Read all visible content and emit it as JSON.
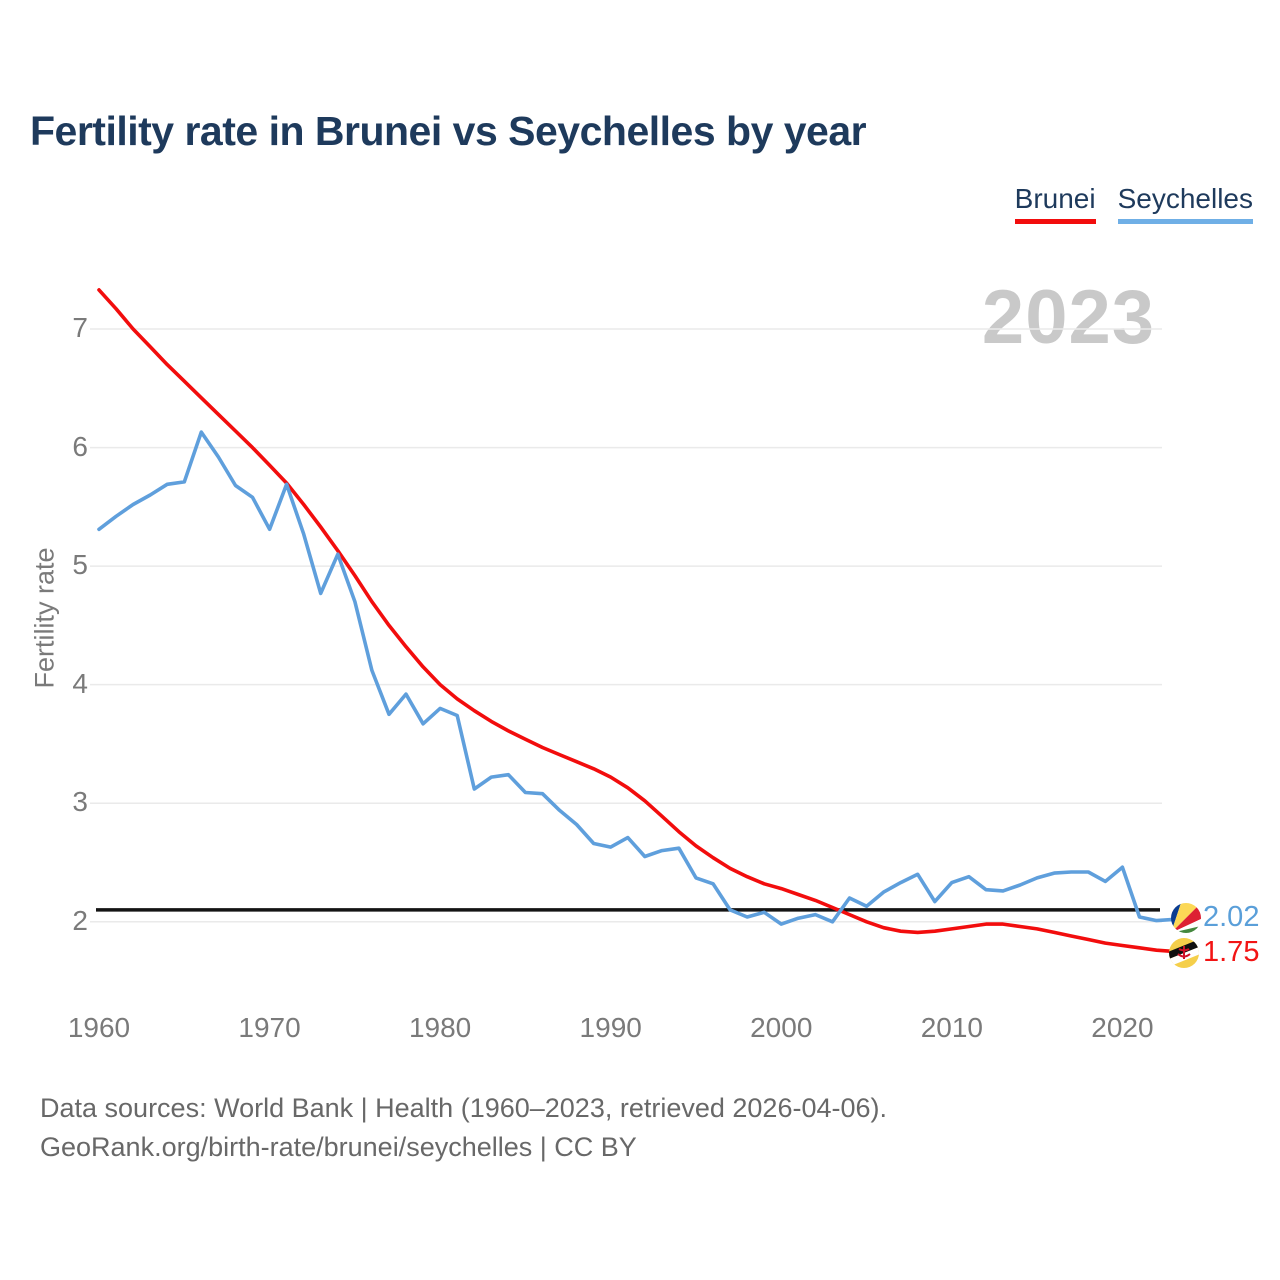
{
  "title": "Fertility rate in Brunei vs Seychelles by year",
  "watermark_year": "2023",
  "legend": [
    {
      "label": "Brunei",
      "color": "#f20d0d"
    },
    {
      "label": "Seychelles",
      "color": "#6fafe6"
    }
  ],
  "y_axis_title": "Fertility rate",
  "end_labels": [
    {
      "series": "Seychelles",
      "value": "2.02",
      "color": "#5a9fd9",
      "flag": "seychelles-flag"
    },
    {
      "series": "Brunei",
      "value": "1.75",
      "color": "#f21414",
      "flag": "brunei-flag"
    }
  ],
  "footer": {
    "line1": "Data sources: World Bank | Health (1960–2023, retrieved 2026-04-06).",
    "line2": "GeoRank.org/birth-rate/brunei/seychelles | CC BY"
  },
  "chart_data": {
    "type": "line",
    "title": "Fertility rate in Brunei vs Seychelles by year",
    "xlabel": "",
    "ylabel": "Fertility rate",
    "grid": "horizontal",
    "legend_position": "top-right",
    "ylim": [
      1.55,
      7.45
    ],
    "yticks": [
      7,
      6,
      5,
      4,
      3,
      2
    ],
    "xticks": [
      1960,
      1970,
      1980,
      1990,
      2000,
      2010,
      2020
    ],
    "reference_line": {
      "value": 2.1,
      "color": "#141414"
    },
    "x": [
      1960,
      1961,
      1962,
      1963,
      1964,
      1965,
      1966,
      1967,
      1968,
      1969,
      1970,
      1971,
      1972,
      1973,
      1974,
      1975,
      1976,
      1977,
      1978,
      1979,
      1980,
      1981,
      1982,
      1983,
      1984,
      1985,
      1986,
      1987,
      1988,
      1989,
      1990,
      1991,
      1992,
      1993,
      1994,
      1995,
      1996,
      1997,
      1998,
      1999,
      2000,
      2001,
      2002,
      2003,
      2004,
      2005,
      2006,
      2007,
      2008,
      2009,
      2010,
      2011,
      2012,
      2013,
      2014,
      2015,
      2016,
      2017,
      2018,
      2019,
      2020,
      2021,
      2022,
      2023
    ],
    "series": [
      {
        "name": "Brunei",
        "color": "#f20d0d",
        "final_value": 1.75,
        "values": [
          7.33,
          7.17,
          7.0,
          6.85,
          6.7,
          6.56,
          6.42,
          6.28,
          6.14,
          6.0,
          5.85,
          5.7,
          5.52,
          5.33,
          5.13,
          4.92,
          4.7,
          4.5,
          4.32,
          4.15,
          4.0,
          3.88,
          3.78,
          3.69,
          3.61,
          3.54,
          3.47,
          3.41,
          3.35,
          3.29,
          3.22,
          3.13,
          3.02,
          2.89,
          2.76,
          2.64,
          2.54,
          2.45,
          2.38,
          2.32,
          2.28,
          2.23,
          2.18,
          2.12,
          2.06,
          2.0,
          1.95,
          1.92,
          1.91,
          1.92,
          1.94,
          1.96,
          1.98,
          1.98,
          1.96,
          1.94,
          1.91,
          1.88,
          1.85,
          1.82,
          1.8,
          1.78,
          1.76,
          1.75
        ]
      },
      {
        "name": "Seychelles",
        "color": "#5f9fdc",
        "final_value": 2.02,
        "values": [
          5.31,
          5.42,
          5.52,
          5.6,
          5.69,
          5.71,
          6.13,
          5.92,
          5.68,
          5.58,
          5.31,
          5.69,
          5.27,
          4.77,
          5.1,
          4.7,
          4.12,
          3.75,
          3.92,
          3.67,
          3.8,
          3.74,
          3.12,
          3.22,
          3.24,
          3.09,
          3.08,
          2.94,
          2.82,
          2.66,
          2.63,
          2.71,
          2.55,
          2.6,
          2.62,
          2.37,
          2.32,
          2.1,
          2.04,
          2.08,
          1.98,
          2.03,
          2.06,
          2.0,
          2.2,
          2.13,
          2.25,
          2.33,
          2.4,
          2.17,
          2.33,
          2.38,
          2.27,
          2.26,
          2.31,
          2.37,
          2.41,
          2.42,
          2.42,
          2.34,
          2.46,
          2.04,
          2.01,
          2.02
        ]
      }
    ]
  }
}
